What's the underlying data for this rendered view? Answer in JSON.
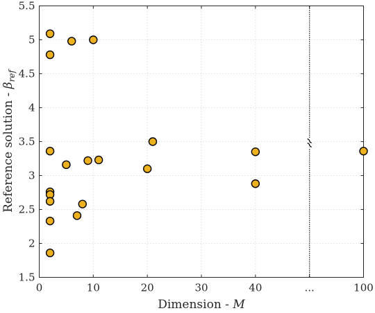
{
  "chart_data": {
    "type": "scatter",
    "xlabel": {
      "text": "Dimension - ",
      "math": "M"
    },
    "ylabel": {
      "text": "Reference solution - ",
      "math_base": "β",
      "math_sub": "ref"
    },
    "ylim": [
      1.5,
      5.5
    ],
    "y_ticks": [
      "1.5",
      "2",
      "2.5",
      "3",
      "3.5",
      "4",
      "4.5",
      "5",
      "5.5"
    ],
    "x_ticks": [
      "0",
      "10",
      "20",
      "30",
      "40",
      "...",
      "100"
    ],
    "x_axis_break": {
      "before": 40,
      "after": 100,
      "label": "..."
    },
    "grid": true,
    "marker_color": "#EDB120",
    "points": [
      {
        "x": 2,
        "y": 5.09
      },
      {
        "x": 2,
        "y": 4.78
      },
      {
        "x": 6,
        "y": 4.98
      },
      {
        "x": 10,
        "y": 5.0
      },
      {
        "x": 2,
        "y": 3.36
      },
      {
        "x": 5,
        "y": 3.16
      },
      {
        "x": 9,
        "y": 3.22
      },
      {
        "x": 11,
        "y": 3.23
      },
      {
        "x": 20,
        "y": 3.1
      },
      {
        "x": 21,
        "y": 3.5
      },
      {
        "x": 40,
        "y": 3.35
      },
      {
        "x": 40,
        "y": 2.88
      },
      {
        "x": 100,
        "y": 3.36
      },
      {
        "x": 2,
        "y": 2.76
      },
      {
        "x": 2,
        "y": 2.72
      },
      {
        "x": 2,
        "y": 2.62
      },
      {
        "x": 2,
        "y": 2.33
      },
      {
        "x": 7,
        "y": 2.41
      },
      {
        "x": 8,
        "y": 2.58
      },
      {
        "x": 2,
        "y": 1.86
      }
    ]
  }
}
